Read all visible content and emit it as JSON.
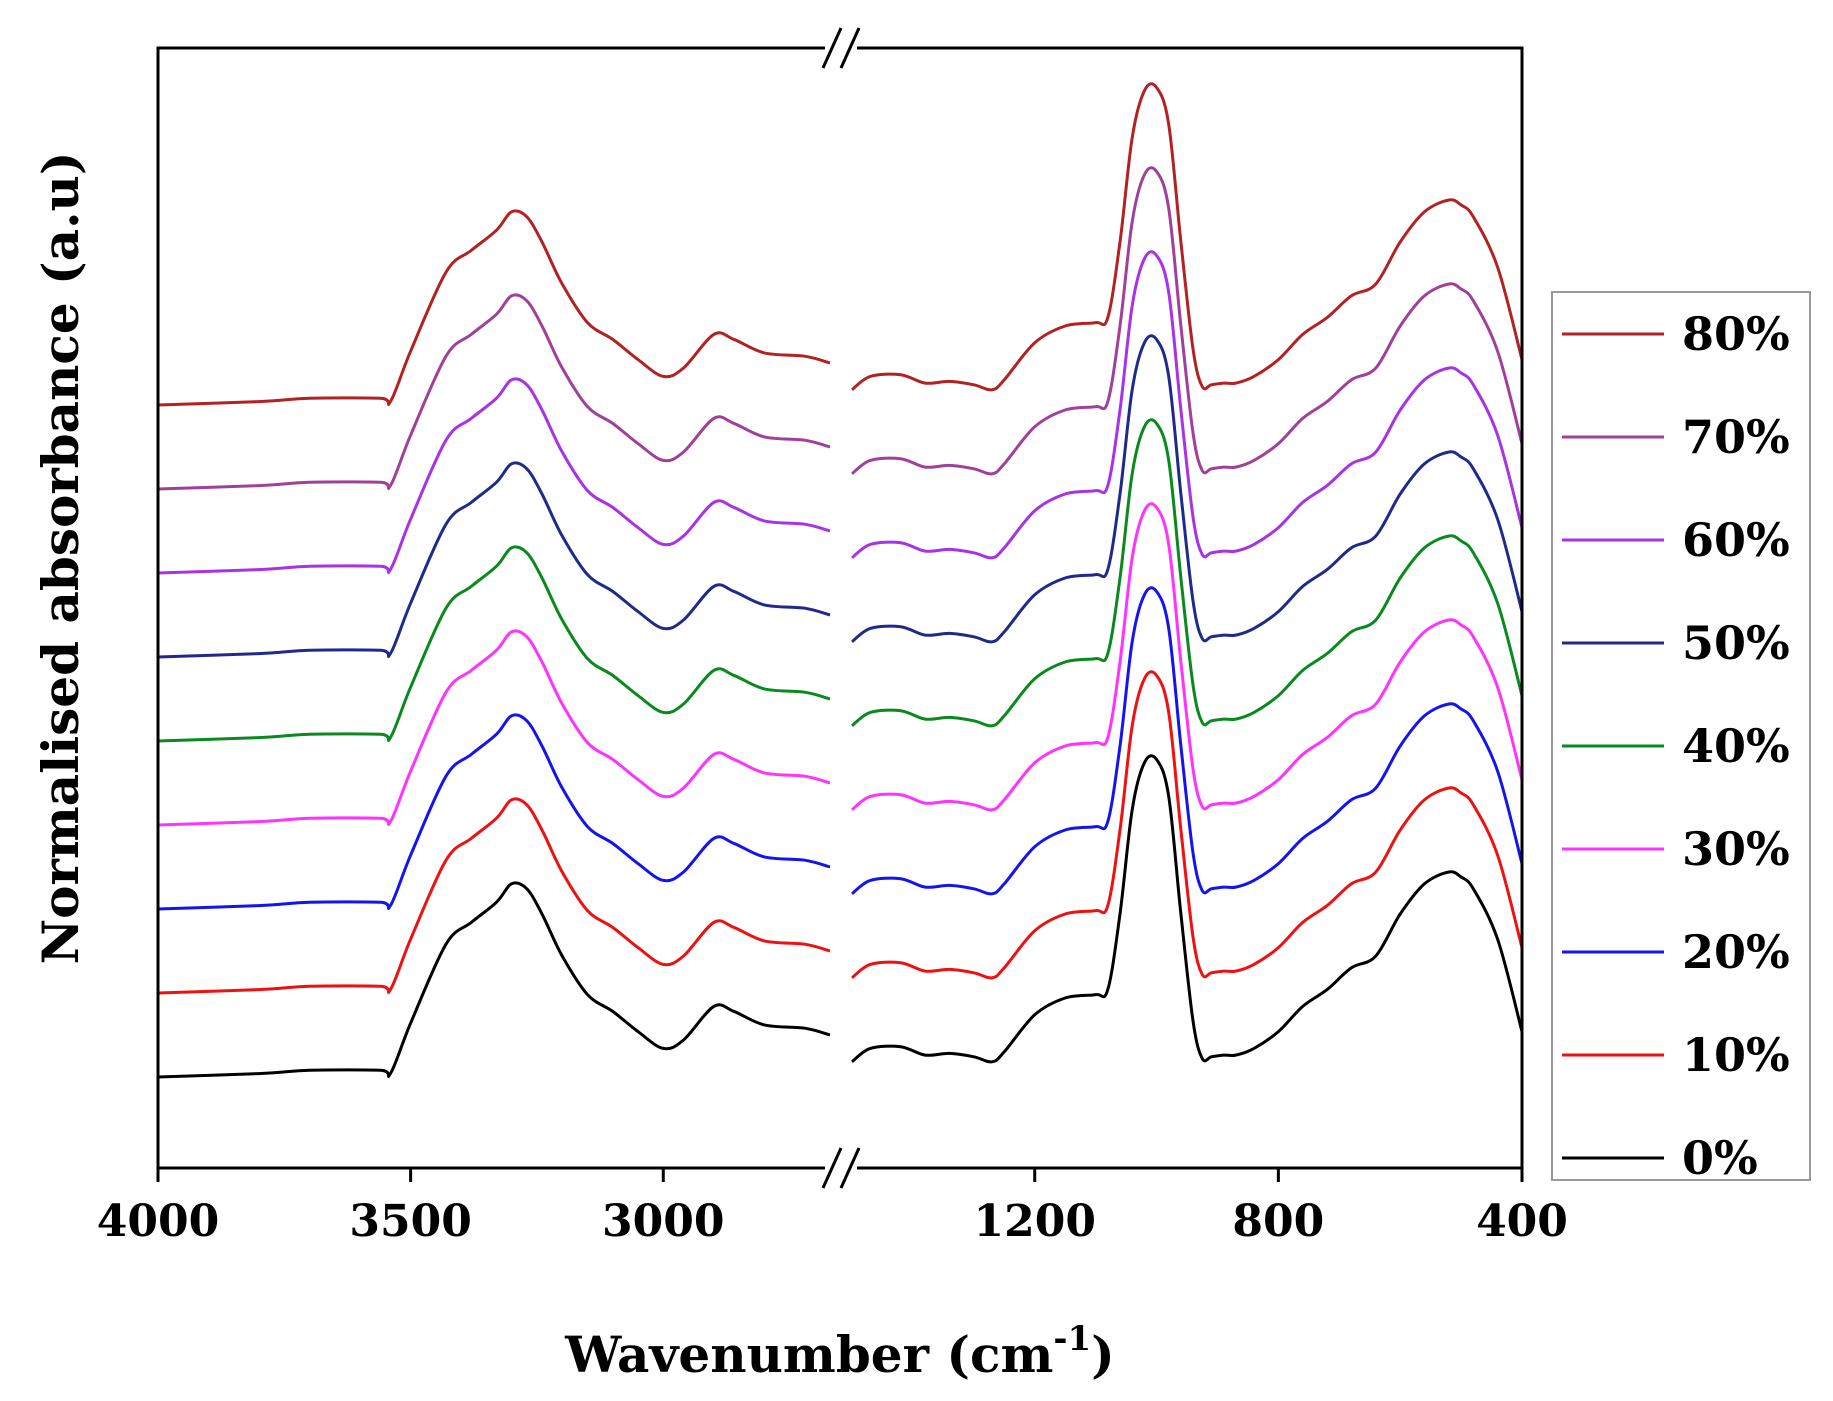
{
  "chart_data": {
    "type": "line",
    "title": "",
    "xlabel": "Wavenumber (cm",
    "xlabel_sup": "-1",
    "xlabel_close": ")",
    "ylabel": "Normalised absorbance (a.u)",
    "x_direction": "decreasing",
    "axis_break": {
      "between": [
        2670,
        1500
      ]
    },
    "segments": [
      {
        "xlim": [
          4000,
          2670
        ],
        "ticks": [
          4000,
          3500,
          3000
        ]
      },
      {
        "xlim": [
          1500,
          400
        ],
        "ticks": [
          1200,
          800,
          400
        ]
      }
    ],
    "tick_labels": [
      "4000",
      "3500",
      "3000",
      "1200",
      "800",
      "400"
    ],
    "y_ticks_shown": false,
    "grid": false,
    "legend": {
      "position": "right",
      "order": [
        "80%",
        "70%",
        "60%",
        "50%",
        "40%",
        "30%",
        "20%",
        "10%",
        "0%"
      ]
    },
    "series_offset_step": 0.5,
    "profile_high_wavenumber": {
      "x": [
        4000,
        3800,
        3700,
        3560,
        3540,
        3500,
        3430,
        3380,
        3330,
        3300,
        3270,
        3240,
        3200,
        3150,
        3100,
        3050,
        3000,
        2960,
        2900,
        2860,
        2800,
        2720,
        2670
      ],
      "y": [
        0.03,
        0.05,
        0.07,
        0.07,
        0.05,
        0.35,
        0.82,
        0.95,
        1.07,
        1.18,
        1.15,
        1.0,
        0.75,
        0.52,
        0.42,
        0.3,
        0.2,
        0.25,
        0.45,
        0.42,
        0.34,
        0.32,
        0.28
      ]
    },
    "profile_low_wavenumber": {
      "x": [
        1500,
        1470,
        1420,
        1380,
        1340,
        1300,
        1270,
        1250,
        1200,
        1150,
        1100,
        1080,
        1060,
        1040,
        1020,
        1000,
        980,
        960,
        940,
        925,
        910,
        890,
        870,
        840,
        800,
        760,
        720,
        680,
        640,
        600,
        560,
        520,
        500,
        480,
        440,
        400
      ],
      "y": [
        0.12,
        0.2,
        0.21,
        0.16,
        0.17,
        0.15,
        0.12,
        0.18,
        0.4,
        0.5,
        0.52,
        0.55,
        1.0,
        1.62,
        1.9,
        1.92,
        1.7,
        1.0,
        0.36,
        0.14,
        0.15,
        0.16,
        0.16,
        0.2,
        0.3,
        0.45,
        0.55,
        0.68,
        0.75,
        1.0,
        1.18,
        1.25,
        1.22,
        1.15,
        0.85,
        0.3
      ]
    },
    "series": [
      {
        "name": "80%",
        "offset": 4.0,
        "color": "#b22222"
      },
      {
        "name": "70%",
        "offset": 3.5,
        "color": "#a0409a"
      },
      {
        "name": "60%",
        "offset": 3.0,
        "color": "#a832e6"
      },
      {
        "name": "50%",
        "offset": 2.5,
        "color": "#1f2a8a"
      },
      {
        "name": "40%",
        "offset": 2.0,
        "color": "#0a8a1e"
      },
      {
        "name": "30%",
        "offset": 1.5,
        "color": "#ff33ff"
      },
      {
        "name": "20%",
        "offset": 1.0,
        "color": "#1414f0"
      },
      {
        "name": "10%",
        "offset": 0.5,
        "color": "#ee1111"
      },
      {
        "name": "0%",
        "offset": 0.0,
        "color": "#000000"
      }
    ]
  }
}
